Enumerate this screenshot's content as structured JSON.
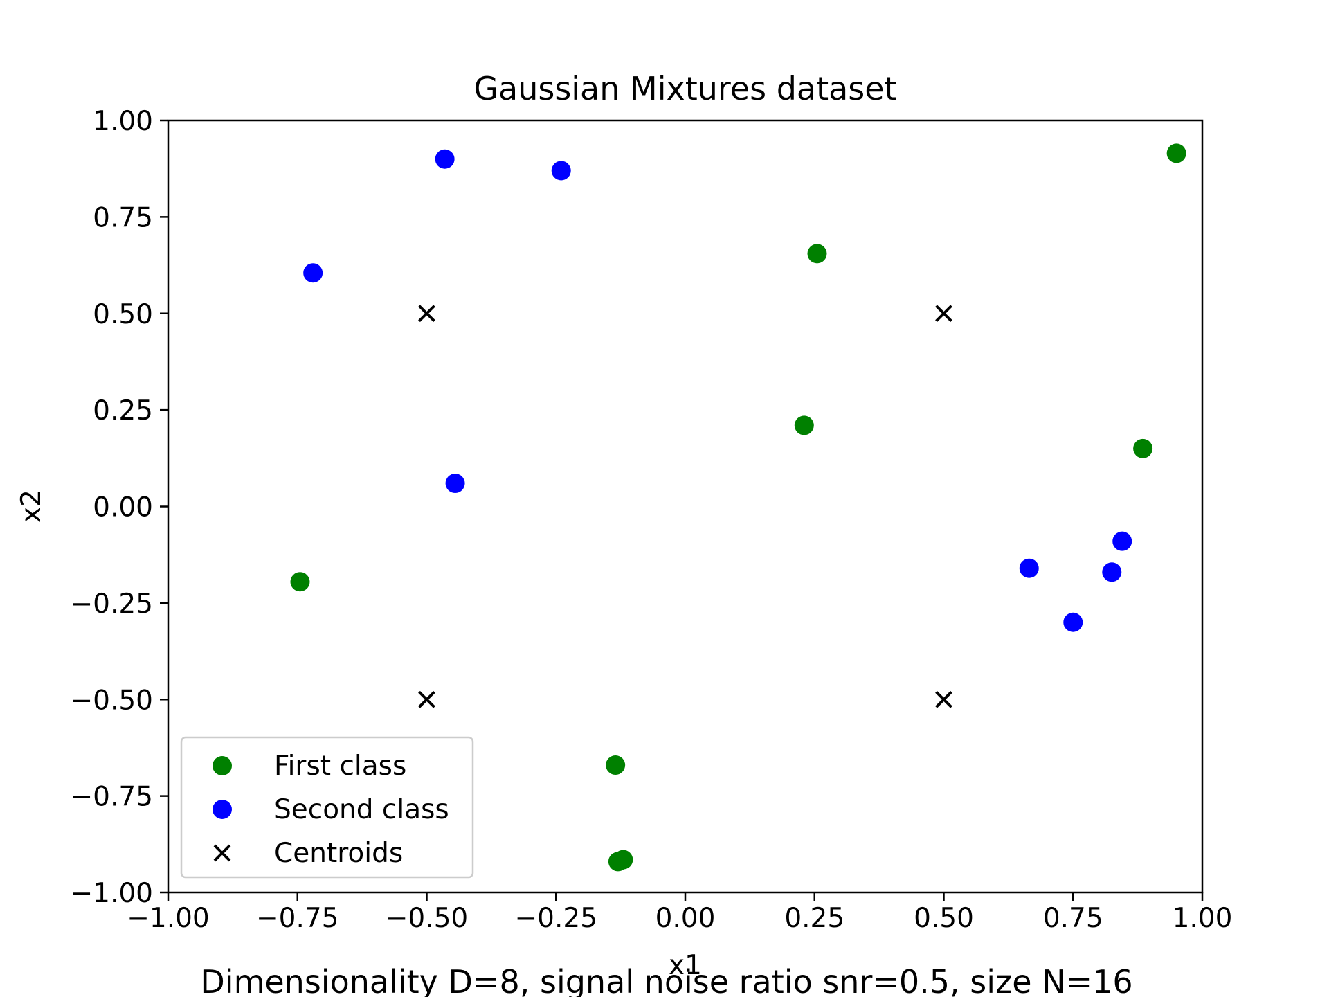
{
  "chart_data": {
    "type": "scatter",
    "title": "Gaussian Mixtures dataset",
    "xlabel": "x1",
    "ylabel": "x2",
    "caption": "Dimensionality D=8, signal noise ratio snr=0.5, size N=16",
    "xlim": [
      -1.0,
      1.0
    ],
    "ylim": [
      -1.0,
      1.0
    ],
    "xticks": [
      -1.0,
      -0.75,
      -0.5,
      -0.25,
      0.0,
      0.25,
      0.5,
      0.75,
      1.0
    ],
    "yticks": [
      -1.0,
      -0.75,
      -0.5,
      -0.25,
      0.0,
      0.25,
      0.5,
      0.75,
      1.0
    ],
    "xtick_labels": [
      "−1.00",
      "−0.75",
      "−0.50",
      "−0.25",
      "0.00",
      "0.25",
      "0.50",
      "0.75",
      "1.00"
    ],
    "ytick_labels": [
      "−1.00",
      "−0.75",
      "−0.50",
      "−0.25",
      "0.00",
      "0.25",
      "0.50",
      "0.75",
      "1.00"
    ],
    "grid": false,
    "legend_position": "lower-left",
    "series": [
      {
        "name": "First class",
        "marker": "circle",
        "color": "#008000",
        "points": [
          [
            0.95,
            0.915
          ],
          [
            0.255,
            0.655
          ],
          [
            0.23,
            0.21
          ],
          [
            0.885,
            0.15
          ],
          [
            -0.745,
            -0.195
          ],
          [
            -0.135,
            -0.67
          ],
          [
            -0.12,
            -0.915
          ],
          [
            -0.13,
            -0.92
          ]
        ]
      },
      {
        "name": "Second class",
        "marker": "circle",
        "color": "#0000ff",
        "points": [
          [
            -0.465,
            0.9
          ],
          [
            -0.24,
            0.87
          ],
          [
            -0.72,
            0.605
          ],
          [
            -0.445,
            0.06
          ],
          [
            0.665,
            -0.16
          ],
          [
            0.845,
            -0.09
          ],
          [
            0.825,
            -0.17
          ],
          [
            0.75,
            -0.3
          ]
        ]
      },
      {
        "name": "Centroids",
        "marker": "x",
        "color": "#000000",
        "points": [
          [
            -0.5,
            0.5
          ],
          [
            0.5,
            0.5
          ],
          [
            -0.5,
            -0.5
          ],
          [
            0.5,
            -0.5
          ]
        ]
      }
    ]
  }
}
